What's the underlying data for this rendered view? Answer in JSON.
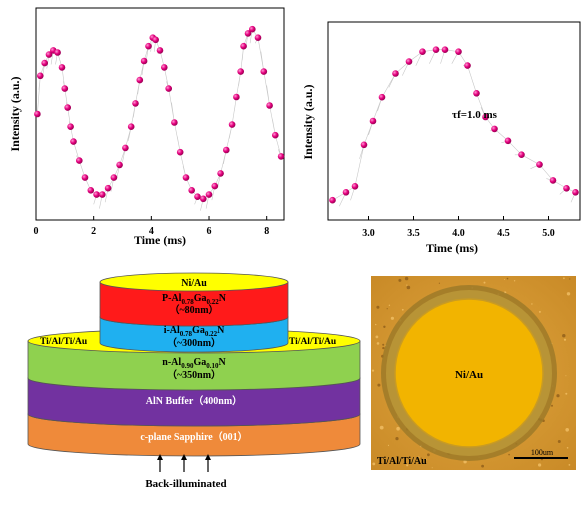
{
  "chart_data": [
    {
      "type": "scatter",
      "xlabel": "Time (ms)",
      "ylabel": "Intensity (a.u.)",
      "xticks": [
        "0",
        "2",
        "4",
        "6",
        "8"
      ],
      "xlim": [
        0,
        8.6
      ],
      "ylim": [
        0,
        1
      ],
      "marker_color": "#e6007e",
      "series": [
        {
          "x": [
            0.05,
            0.15,
            0.3,
            0.45,
            0.6,
            0.75,
            0.9,
            1.0,
            1.1,
            1.2,
            1.3,
            1.5,
            1.7,
            1.9,
            2.1,
            2.3,
            2.5,
            2.7,
            2.9,
            3.1,
            3.3,
            3.45,
            3.6,
            3.75,
            3.9,
            4.05,
            4.15,
            4.3,
            4.45,
            4.6,
            4.8,
            5.0,
            5.2,
            5.4,
            5.6,
            5.8,
            6.0,
            6.2,
            6.4,
            6.6,
            6.8,
            6.95,
            7.1,
            7.2,
            7.35,
            7.5,
            7.7,
            7.9,
            8.1,
            8.3,
            8.5
          ],
          "y": [
            0.5,
            0.68,
            0.74,
            0.78,
            0.8,
            0.79,
            0.72,
            0.62,
            0.53,
            0.44,
            0.37,
            0.28,
            0.2,
            0.14,
            0.12,
            0.12,
            0.15,
            0.2,
            0.26,
            0.34,
            0.44,
            0.55,
            0.66,
            0.75,
            0.82,
            0.86,
            0.85,
            0.8,
            0.72,
            0.62,
            0.46,
            0.32,
            0.2,
            0.14,
            0.11,
            0.1,
            0.12,
            0.16,
            0.22,
            0.33,
            0.45,
            0.58,
            0.7,
            0.82,
            0.88,
            0.9,
            0.86,
            0.7,
            0.54,
            0.4,
            0.3
          ]
        }
      ]
    },
    {
      "type": "scatter",
      "xlabel": "Time (ms)",
      "ylabel": "Intensity (a.u.)",
      "xticks": [
        "3.0",
        "3.5",
        "4.0",
        "4.5",
        "5.0"
      ],
      "xlim": [
        2.55,
        5.35
      ],
      "ylim": [
        0,
        1
      ],
      "annotation": "τf=1.0 ms",
      "marker_color": "#e6007e",
      "series": [
        {
          "x": [
            2.6,
            2.75,
            2.85,
            2.95,
            3.05,
            3.15,
            3.3,
            3.45,
            3.6,
            3.75,
            3.85,
            4.0,
            4.1,
            4.2,
            4.3,
            4.4,
            4.55,
            4.7,
            4.9,
            5.05,
            5.2,
            5.3
          ],
          "y": [
            0.1,
            0.14,
            0.17,
            0.38,
            0.5,
            0.62,
            0.74,
            0.8,
            0.85,
            0.86,
            0.86,
            0.85,
            0.78,
            0.64,
            0.52,
            0.46,
            0.4,
            0.33,
            0.28,
            0.2,
            0.16,
            0.14
          ]
        }
      ]
    }
  ],
  "diagram": {
    "layers": {
      "niau_cap": "Ni/Au",
      "p_layer": "P-Al0.78Ga0.22N",
      "p_thick": "（~80nm）",
      "i_layer": "i-Al0.78Ga0.22N",
      "i_thick": "（~300nm）",
      "contact_left": "Ti/Al/Ti/Au",
      "contact_right": "Ti/Al/Ti/Au",
      "n_layer": "n-Al0.90Ga0.10N",
      "n_thick": "（~350nm）",
      "buffer": "AlN Buffer（400nm）",
      "substrate": "c-plane Sapphire（001）"
    },
    "illumination_label": "Back-illuminated"
  },
  "micrograph": {
    "center_label": "Ni/Au",
    "corner_label": "Ti/Al/Ti/Au",
    "scale_label": "100um"
  }
}
